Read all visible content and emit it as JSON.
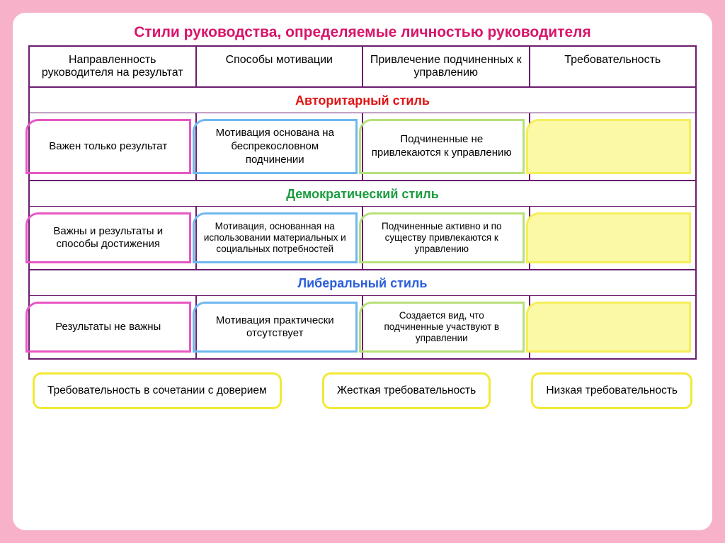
{
  "title": {
    "text": "Стили руководства, определяемые личностью руководителя",
    "color": "#d8156a",
    "fontsize": 21
  },
  "frame_border": "#6b1d6e",
  "headers": [
    "Направленность руководителя на результат",
    "Способы мотивации",
    "Привлечение подчиненных к управлению",
    "Требовательность"
  ],
  "header_fontsize": 16,
  "sections": [
    {
      "label": "Авторитарный стиль",
      "color": "#e01414",
      "fontsize": 18
    },
    {
      "label": "Демократический стиль",
      "color": "#1a9c3f",
      "fontsize": 18
    },
    {
      "label": "Либеральный стиль",
      "color": "#2b5fd9",
      "fontsize": 18
    }
  ],
  "col_colors": {
    "c1": "#e756c3",
    "c2": "#6fb8ef",
    "c3": "#b7e07a",
    "c4": "#f4ef5a"
  },
  "yellow_fill": "#fbf8a6",
  "rows": [
    {
      "c1": "Важен только результат",
      "c2": "Мотивация основана на беспрекословном подчинении",
      "c3": "Подчиненные не привлекаются к управлению"
    },
    {
      "c1": "Важны и результаты и способы достижения",
      "c2": "Мотивация, основанная на использовании материальных и социальных потребностей",
      "c3": "Подчиненные активно и по существу привлекаются к управлению"
    },
    {
      "c1": "Результаты не важны",
      "c2": "Мотивация практически отсутствует",
      "c3": "Создается вид, что подчиненные участвуют в управлении"
    }
  ],
  "bottom_boxes": [
    "Требовательность в сочетании с доверием",
    "Жесткая требовательность",
    "Низкая требовательность"
  ],
  "bottom_border": "#f2e936",
  "background": "#f7b2c9",
  "card_bg": "#ffffff"
}
